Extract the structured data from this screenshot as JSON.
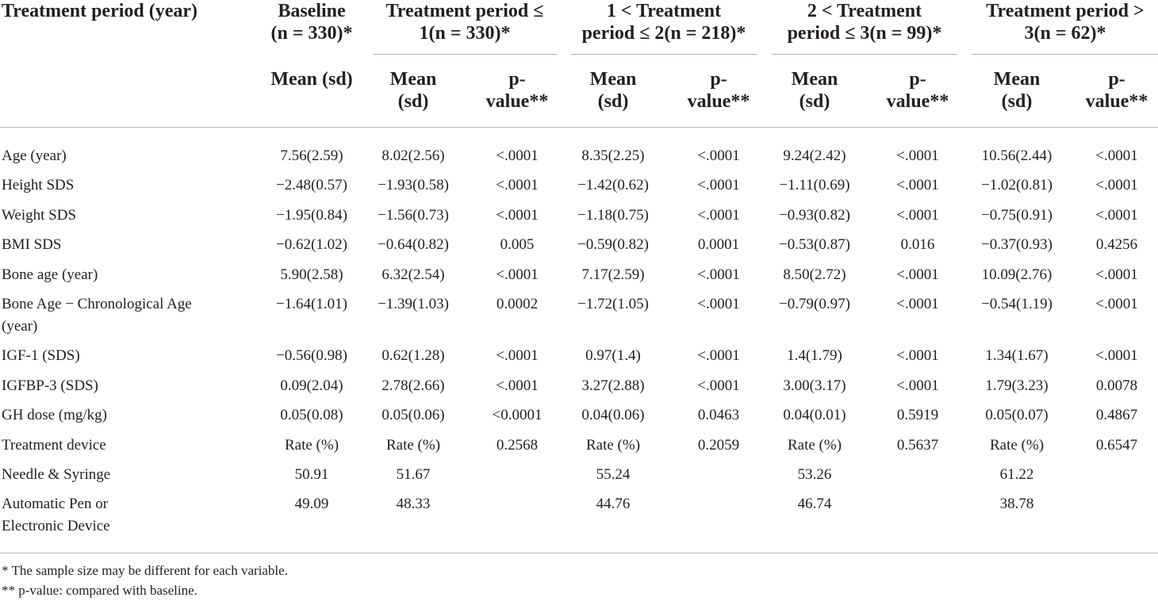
{
  "header": {
    "stub": "Treatment period (year)",
    "groups": [
      {
        "line1": "Baseline",
        "line2": "(n = 330)*"
      },
      {
        "line1": "Treatment period ≤",
        "line2": "1(n = 330)*"
      },
      {
        "line1": "1 < Treatment",
        "line2": "period ≤ 2(n = 218)*"
      },
      {
        "line1": "2 < Treatment",
        "line2": "period ≤ 3(n = 99)*"
      },
      {
        "line1": "Treatment period >",
        "line2": "3(n = 62)*"
      }
    ],
    "baseline_sub": "Mean (sd)",
    "mean_sub": {
      "line1": "Mean",
      "line2": "(sd)"
    },
    "p_sub": {
      "line1": "p-",
      "line2": "value**"
    }
  },
  "rows": [
    {
      "label": [
        "Age (year)"
      ],
      "cells": [
        "7.56(2.59)",
        "8.02(2.56)",
        "<.0001",
        "8.35(2.25)",
        "<.0001",
        "9.24(2.42)",
        "<.0001",
        "10.56(2.44)",
        "<.0001"
      ]
    },
    {
      "label": [
        "Height SDS"
      ],
      "cells": [
        "−2.48(0.57)",
        "−1.93(0.58)",
        "<.0001",
        "−1.42(0.62)",
        "<.0001",
        "−1.11(0.69)",
        "<.0001",
        "−1.02(0.81)",
        "<.0001"
      ]
    },
    {
      "label": [
        "Weight SDS"
      ],
      "cells": [
        "−1.95(0.84)",
        "−1.56(0.73)",
        "<.0001",
        "−1.18(0.75)",
        "<.0001",
        "−0.93(0.82)",
        "<.0001",
        "−0.75(0.91)",
        "<.0001"
      ]
    },
    {
      "label": [
        "BMI SDS"
      ],
      "cells": [
        "−0.62(1.02)",
        "−0.64(0.82)",
        "0.005",
        "−0.59(0.82)",
        "0.0001",
        "−0.53(0.87)",
        "0.016",
        "−0.37(0.93)",
        "0.4256"
      ]
    },
    {
      "label": [
        "Bone age (year)"
      ],
      "cells": [
        "5.90(2.58)",
        "6.32(2.54)",
        "<.0001",
        "7.17(2.59)",
        "<.0001",
        "8.50(2.72)",
        "<.0001",
        "10.09(2.76)",
        "<.0001"
      ]
    },
    {
      "label": [
        "Bone Age − Chronological Age",
        "(year)"
      ],
      "cells": [
        "−1.64(1.01)",
        "−1.39(1.03)",
        "0.0002",
        "−1.72(1.05)",
        "<.0001",
        "−0.79(0.97)",
        "<.0001",
        "−0.54(1.19)",
        "<.0001"
      ]
    },
    {
      "label": [
        "IGF-1 (SDS)"
      ],
      "cells": [
        "−0.56(0.98)",
        "0.62(1.28)",
        "<.0001",
        "0.97(1.4)",
        "<.0001",
        "1.4(1.79)",
        "<.0001",
        "1.34(1.67)",
        "<.0001"
      ]
    },
    {
      "label": [
        "IGFBP-3 (SDS)"
      ],
      "cells": [
        "0.09(2.04)",
        "2.78(2.66)",
        "<.0001",
        "3.27(2.88)",
        "<.0001",
        "3.00(3.17)",
        "<.0001",
        "1.79(3.23)",
        "0.0078"
      ]
    },
    {
      "label": [
        "GH dose (mg/kg)"
      ],
      "cells": [
        "0.05(0.08)",
        "0.05(0.06)",
        "<0.0001",
        "0.04(0.06)",
        "0.0463",
        "0.04(0.01)",
        "0.5919",
        "0.05(0.07)",
        "0.4867"
      ]
    },
    {
      "label": [
        "Treatment device"
      ],
      "cells": [
        "Rate (%)",
        "Rate (%)",
        "0.2568",
        "Rate (%)",
        "0.2059",
        "Rate (%)",
        "0.5637",
        "Rate (%)",
        "0.6547"
      ]
    },
    {
      "label": [
        "Needle & Syringe"
      ],
      "cells": [
        "50.91",
        "51.67",
        "",
        "55.24",
        "",
        "53.26",
        "",
        "61.22",
        ""
      ]
    },
    {
      "label": [
        "Automatic Pen or",
        "Electronic Device"
      ],
      "cells": [
        "49.09",
        "48.33",
        "",
        "44.76",
        "",
        "46.74",
        "",
        "38.78",
        ""
      ]
    }
  ],
  "footnotes": [
    "* The sample size may be different for each variable.",
    "** p-value: compared with baseline."
  ]
}
